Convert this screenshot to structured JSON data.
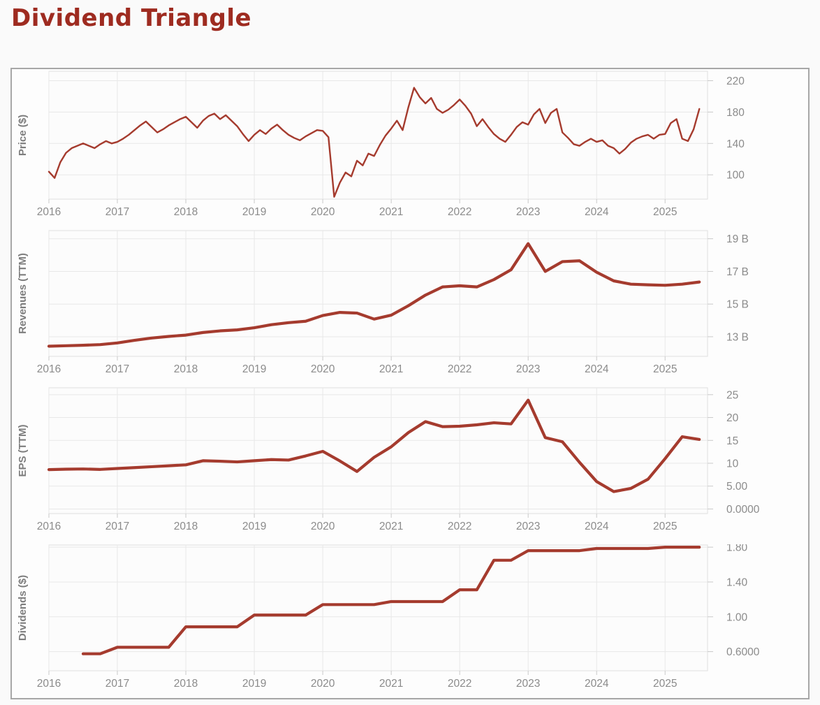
{
  "page": {
    "title": "Dividend Triangle"
  },
  "colors": {
    "accent": "#9e2b20",
    "line": "#a53b2e",
    "grid": "#e8e8e8",
    "plot_border": "#e0e0e0",
    "plot_bg": "#fcfcfc",
    "tick": "#c9c9c9",
    "axis_text": "#8b8b8b",
    "axis_title_text": "#7d7d7d",
    "panel_border": "#a7a7a7",
    "page_bg": "#fafafa"
  },
  "chart_data": [
    {
      "type": "line",
      "ylabel": "Price ($)",
      "title": "",
      "xlabel": "",
      "grid": true,
      "legend_position": "none",
      "xlim": [
        2016,
        2025.62
      ],
      "ylim": [
        69,
        232
      ],
      "x_ticks": [
        "2016",
        "2017",
        "2018",
        "2019",
        "2020",
        "2021",
        "2022",
        "2023",
        "2024",
        "2025"
      ],
      "y_ticks": [
        {
          "v": 220,
          "label": "220"
        },
        {
          "v": 180,
          "label": "180"
        },
        {
          "v": 140,
          "label": "140"
        },
        {
          "v": 100,
          "label": "100"
        }
      ],
      "x_start": 2016,
      "x_step": 0.0833333,
      "values": [
        104,
        96,
        116,
        128,
        134,
        137,
        140,
        137,
        134,
        139,
        143,
        140,
        142,
        146,
        151,
        157,
        163,
        168,
        161,
        154,
        158,
        163,
        167,
        171,
        174,
        167,
        160,
        169,
        175,
        178,
        171,
        176,
        169,
        162,
        152,
        143,
        151,
        157,
        152,
        159,
        164,
        157,
        151,
        147,
        144,
        149,
        153,
        157,
        156,
        148,
        72,
        90,
        103,
        98,
        118,
        112,
        127,
        124,
        138,
        150,
        159,
        169,
        157,
        186,
        211,
        199,
        191,
        198,
        184,
        179,
        183,
        189,
        196,
        188,
        178,
        162,
        171,
        161,
        152,
        146,
        142,
        151,
        161,
        167,
        164,
        177,
        184,
        166,
        179,
        184,
        154,
        147,
        139,
        137,
        142,
        146,
        142,
        144,
        137,
        134,
        127,
        133,
        141,
        146,
        149,
        151,
        146,
        151,
        152,
        166,
        171,
        146,
        143,
        158,
        184
      ],
      "line_width": 2.4
    },
    {
      "type": "line",
      "ylabel": "Revenues (TTM)",
      "title": "",
      "xlabel": "",
      "grid": true,
      "legend_position": "none",
      "xlim": [
        2016,
        2025.62
      ],
      "ylim": [
        11.8,
        19.5
      ],
      "x_ticks": [
        "2016",
        "2017",
        "2018",
        "2019",
        "2020",
        "2021",
        "2022",
        "2023",
        "2024",
        "2025"
      ],
      "y_ticks": [
        {
          "v": 19,
          "label": "19 B"
        },
        {
          "v": 17,
          "label": "17 B"
        },
        {
          "v": 15,
          "label": "15 B"
        },
        {
          "v": 13,
          "label": "13 B"
        }
      ],
      "x_start": 2016,
      "x_step": 0.25,
      "values": [
        12.42,
        12.45,
        12.48,
        12.52,
        12.62,
        12.78,
        12.92,
        13.02,
        13.1,
        13.26,
        13.36,
        13.42,
        13.55,
        13.74,
        13.86,
        13.95,
        14.3,
        14.49,
        14.45,
        14.08,
        14.32,
        14.9,
        15.55,
        16.05,
        16.12,
        16.05,
        16.5,
        17.1,
        18.7,
        17.0,
        17.6,
        17.65,
        16.95,
        16.42,
        16.22,
        16.18,
        16.15,
        16.22,
        16.35
      ],
      "line_width": 4.2
    },
    {
      "type": "line",
      "ylabel": "EPS (TTM)",
      "title": "",
      "xlabel": "",
      "grid": true,
      "legend_position": "none",
      "xlim": [
        2016,
        2025.62
      ],
      "ylim": [
        -1,
        26.5
      ],
      "x_ticks": [
        "2016",
        "2017",
        "2018",
        "2019",
        "2020",
        "2021",
        "2022",
        "2023",
        "2024",
        "2025"
      ],
      "y_ticks": [
        {
          "v": 25,
          "label": "25"
        },
        {
          "v": 20,
          "label": "20"
        },
        {
          "v": 15,
          "label": "15"
        },
        {
          "v": 10,
          "label": "10"
        },
        {
          "v": 5,
          "label": "5.00"
        },
        {
          "v": 0,
          "label": "0.0000"
        }
      ],
      "x_start": 2016,
      "x_step": 0.25,
      "values": [
        8.6,
        8.7,
        8.75,
        8.65,
        8.85,
        9.05,
        9.25,
        9.45,
        9.65,
        10.55,
        10.45,
        10.3,
        10.55,
        10.8,
        10.7,
        11.6,
        12.6,
        10.5,
        8.2,
        11.3,
        13.6,
        16.7,
        19.1,
        18.0,
        18.1,
        18.4,
        18.85,
        18.6,
        23.8,
        15.6,
        14.7,
        10.2,
        6.0,
        3.8,
        4.5,
        6.5,
        11.0,
        15.8,
        15.2
      ],
      "line_width": 4.2
    },
    {
      "type": "line",
      "ylabel": "Dividends ($)",
      "title": "",
      "xlabel": "",
      "grid": true,
      "legend_position": "none",
      "xlim": [
        2016,
        2025.62
      ],
      "ylim": [
        0.38,
        1.825
      ],
      "x_ticks": [
        "2016",
        "2017",
        "2018",
        "2019",
        "2020",
        "2021",
        "2022",
        "2023",
        "2024",
        "2025"
      ],
      "y_ticks": [
        {
          "v": 1.8,
          "label": "1.80"
        },
        {
          "v": 1.4,
          "label": "1.40"
        },
        {
          "v": 1.0,
          "label": "1.00"
        },
        {
          "v": 0.6,
          "label": "0.6000"
        }
      ],
      "x_start": 2016.5,
      "x_step": 0.25,
      "values": [
        0.575,
        0.575,
        0.65,
        0.65,
        0.65,
        0.65,
        0.885,
        0.885,
        0.885,
        0.885,
        1.02,
        1.02,
        1.02,
        1.02,
        1.14,
        1.14,
        1.14,
        1.14,
        1.175,
        1.175,
        1.175,
        1.175,
        1.31,
        1.31,
        1.65,
        1.65,
        1.76,
        1.76,
        1.76,
        1.76,
        1.785,
        1.785,
        1.785,
        1.785,
        1.8,
        1.8,
        1.8
      ],
      "line_width": 4.2
    }
  ]
}
